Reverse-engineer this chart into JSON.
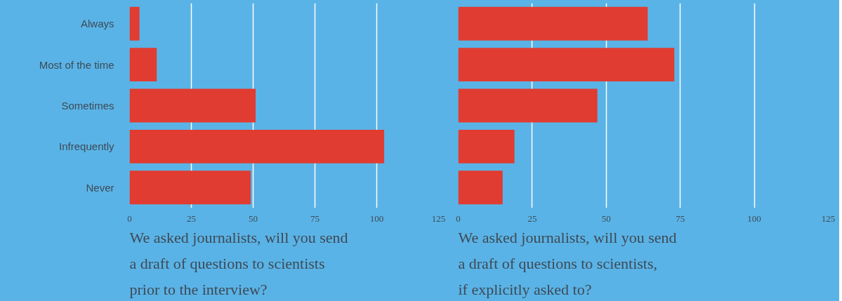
{
  "chart_data": [
    {
      "type": "bar",
      "orientation": "horizontal",
      "title": "We asked journalists, will you send a draft of questions to scientists prior to the interview?",
      "categories": [
        "Always",
        "Most of the time",
        "Sometimes",
        "Infrequently",
        "Never"
      ],
      "values": [
        4,
        11,
        51,
        103,
        49
      ],
      "color": "#e03c31",
      "xlim": [
        0,
        125
      ],
      "xticks": [
        0,
        25,
        50,
        75,
        100,
        125
      ],
      "grid": "x"
    },
    {
      "type": "bar",
      "orientation": "horizontal",
      "title": "We asked journalists, will you send a draft of questions to scientists, if explicitly asked to?",
      "categories": [
        null,
        null,
        null,
        null,
        null
      ],
      "values": [
        64,
        73,
        47,
        19,
        15
      ],
      "color": "#e03c31",
      "xlim": [
        0,
        125
      ],
      "xticks": [
        0,
        25,
        50,
        75,
        100,
        125
      ],
      "grid": "x",
      "tick_labels": "x"
    }
  ]
}
